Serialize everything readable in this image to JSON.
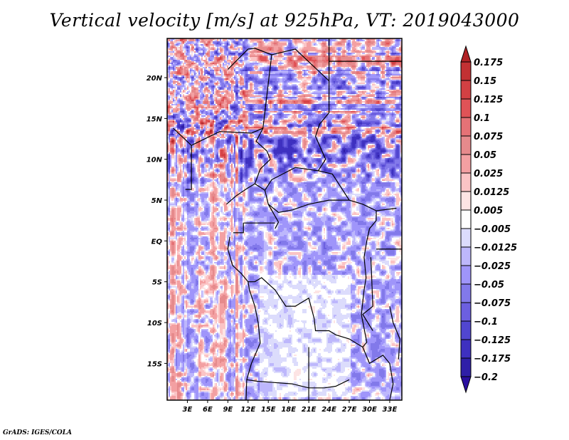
{
  "chart_data": {
    "type": "heatmap",
    "title": "Vertical velocity [m/s] at 925hPa, VT: 2019043000",
    "variable": "Vertical velocity",
    "units": "m/s",
    "level": "925hPa",
    "valid_time": "2019043000",
    "x_ticks": [
      "3E",
      "6E",
      "9E",
      "12E",
      "15E",
      "18E",
      "21E",
      "24E",
      "27E",
      "30E",
      "33E"
    ],
    "x_tick_values": [
      3,
      6,
      9,
      12,
      15,
      18,
      21,
      24,
      27,
      30,
      33
    ],
    "y_ticks": [
      "20N",
      "15N",
      "10N",
      "5N",
      "EQ",
      "5S",
      "10S",
      "15S"
    ],
    "y_tick_values": [
      20,
      15,
      10,
      5,
      0,
      -5,
      -10,
      -15
    ],
    "xlim": [
      0,
      34.8
    ],
    "ylim": [
      -19.5,
      24.8
    ],
    "grid": false,
    "colorbar": {
      "placement": "right",
      "labels": [
        "0.175",
        "0.15",
        "0.125",
        "0.1",
        "0.075",
        "0.05",
        "0.025",
        "0.0125",
        "0.005",
        "-0.005",
        "-0.0125",
        "-0.025",
        "-0.05",
        "-0.075",
        "-0.1",
        "-0.125",
        "-0.175",
        "-0.2"
      ],
      "colors": [
        "#b02225",
        "#c23133",
        "#d24043",
        "#e05357",
        "#e57276",
        "#e68a8c",
        "#f3a0a2",
        "#fbc4c5",
        "#fde4e4",
        "#ffffff",
        "#dcdcfc",
        "#bdb7fc",
        "#9f95fa",
        "#8279ea",
        "#6c5fe0",
        "#5146d0",
        "#3e30c0",
        "#2f1fa8",
        "#2a0fa0"
      ],
      "extend": "both"
    }
  },
  "footer": {
    "credit": "GrADS: IGES/COLA"
  }
}
